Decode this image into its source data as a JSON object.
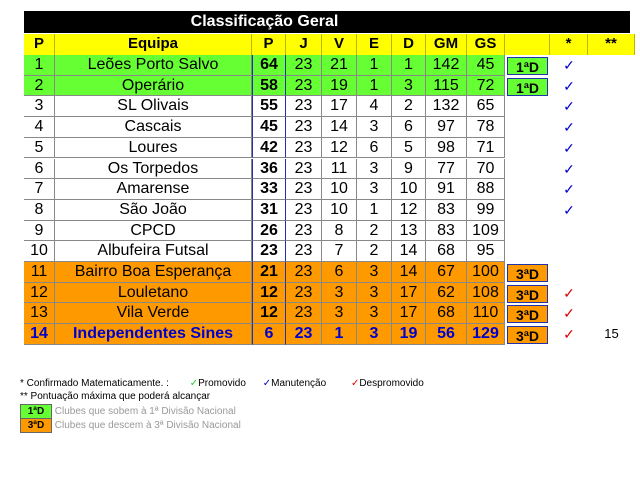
{
  "title": "Classificação Geral",
  "headers": [
    "P",
    "Equipa",
    "P",
    "J",
    "V",
    "E",
    "D",
    "GM",
    "GS",
    "",
    "*",
    "**"
  ],
  "rows": [
    {
      "pos": "1",
      "team": "Leões Porto Salvo",
      "pts": "64",
      "j": "23",
      "v": "21",
      "e": "1",
      "d": "1",
      "gm": "142",
      "gs": "45",
      "badge": "1ªD",
      "check": "✓",
      "check_color": "#0000cc",
      "max": "",
      "zone": "green"
    },
    {
      "pos": "2",
      "team": "Operário",
      "pts": "58",
      "j": "23",
      "v": "19",
      "e": "1",
      "d": "3",
      "gm": "115",
      "gs": "72",
      "badge": "1ªD",
      "check": "✓",
      "check_color": "#0000cc",
      "max": "",
      "zone": "green"
    },
    {
      "pos": "3",
      "team": "SL Olivais",
      "pts": "55",
      "j": "23",
      "v": "17",
      "e": "4",
      "d": "2",
      "gm": "132",
      "gs": "65",
      "badge": "",
      "check": "✓",
      "check_color": "#0000cc",
      "max": "",
      "zone": "white"
    },
    {
      "pos": "4",
      "team": "Cascais",
      "pts": "45",
      "j": "23",
      "v": "14",
      "e": "3",
      "d": "6",
      "gm": "97",
      "gs": "78",
      "badge": "",
      "check": "✓",
      "check_color": "#0000cc",
      "max": "",
      "zone": "white"
    },
    {
      "pos": "5",
      "team": "Loures",
      "pts": "42",
      "j": "23",
      "v": "12",
      "e": "6",
      "d": "5",
      "gm": "98",
      "gs": "71",
      "badge": "",
      "check": "✓",
      "check_color": "#0000cc",
      "max": "",
      "zone": "white"
    },
    {
      "pos": "6",
      "team": "Os Torpedos",
      "pts": "36",
      "j": "23",
      "v": "11",
      "e": "3",
      "d": "9",
      "gm": "77",
      "gs": "70",
      "badge": "",
      "check": "✓",
      "check_color": "#0000cc",
      "max": "",
      "zone": "white"
    },
    {
      "pos": "7",
      "team": "Amarense",
      "pts": "33",
      "j": "23",
      "v": "10",
      "e": "3",
      "d": "10",
      "gm": "91",
      "gs": "88",
      "badge": "",
      "check": "✓",
      "check_color": "#0000cc",
      "max": "",
      "zone": "white"
    },
    {
      "pos": "8",
      "team": "São João",
      "pts": "31",
      "j": "23",
      "v": "10",
      "e": "1",
      "d": "12",
      "gm": "83",
      "gs": "99",
      "badge": "",
      "check": "✓",
      "check_color": "#0000cc",
      "max": "",
      "zone": "white"
    },
    {
      "pos": "9",
      "team": "CPCD",
      "pts": "26",
      "j": "23",
      "v": "8",
      "e": "2",
      "d": "13",
      "gm": "83",
      "gs": "109",
      "badge": "",
      "check": "",
      "check_color": "",
      "max": "",
      "zone": "white"
    },
    {
      "pos": "10",
      "team": "Albufeira Futsal",
      "pts": "23",
      "j": "23",
      "v": "7",
      "e": "2",
      "d": "14",
      "gm": "68",
      "gs": "95",
      "badge": "",
      "check": "",
      "check_color": "",
      "max": "",
      "zone": "white"
    },
    {
      "pos": "11",
      "team": "Bairro Boa Esperança",
      "pts": "21",
      "j": "23",
      "v": "6",
      "e": "3",
      "d": "14",
      "gm": "67",
      "gs": "100",
      "badge": "3ªD",
      "check": "",
      "check_color": "",
      "max": "",
      "zone": "orange"
    },
    {
      "pos": "12",
      "team": "Louletano",
      "pts": "12",
      "j": "23",
      "v": "3",
      "e": "3",
      "d": "17",
      "gm": "62",
      "gs": "108",
      "badge": "3ªD",
      "check": "✓",
      "check_color": "#dd0000",
      "max": "",
      "zone": "orange"
    },
    {
      "pos": "13",
      "team": "Vila Verde",
      "pts": "12",
      "j": "23",
      "v": "3",
      "e": "3",
      "d": "17",
      "gm": "68",
      "gs": "110",
      "badge": "3ªD",
      "check": "✓",
      "check_color": "#dd0000",
      "max": "",
      "zone": "orange"
    },
    {
      "pos": "14",
      "team": "Independentes Sines",
      "pts": "6",
      "j": "23",
      "v": "1",
      "e": "3",
      "d": "19",
      "gm": "56",
      "gs": "129",
      "badge": "3ªD",
      "check": "✓",
      "check_color": "#dd0000",
      "max": "15",
      "zone": "orange",
      "highlight": true
    }
  ],
  "legend": {
    "confirmed": "* Confirmado Matematicamente. :",
    "promoted": "Promovido",
    "promoted_color": "#22cc22",
    "maintained": "Manutenção",
    "maintained_color": "#0000cc",
    "relegated": "Despromovido",
    "relegated_color": "#dd0000",
    "check": "✓",
    "max_points": "** Pontuação máxima que poderá alcançar",
    "up_badge": "1ªD",
    "up_text": "Clubes que sobem à 1ª Divisão Nacional",
    "down_badge": "3ªD",
    "down_text": "Clubes que descem à 3ª Divisão Nacional"
  },
  "colors": {
    "green": "#66ff33",
    "orange": "#ff9900",
    "header": "#ffff00",
    "title_bg": "#000000"
  }
}
